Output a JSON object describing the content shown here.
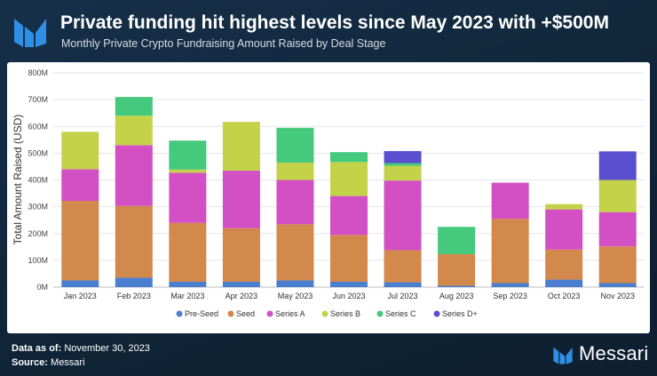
{
  "header": {
    "title": "Private funding hit highest levels since May 2023 with +$500M",
    "subtitle": "Monthly Private Crypto Fundraising Amount Raised by Deal Stage"
  },
  "colors": {
    "Pre-Seed": "#4a7fd0",
    "Seed": "#d3884c",
    "Series A": "#d24fc4",
    "Series B": "#c4d24a",
    "Series C": "#45c97c",
    "Series D+": "#5b4fd0",
    "brand": "#2f8ee6"
  },
  "chart_data": {
    "type": "bar",
    "stacked": true,
    "title": "Monthly Private Crypto Fundraising Amount Raised by Deal Stage",
    "xlabel": "",
    "ylabel": "Total Amount Raised (USD)",
    "ylim": [
      0,
      800
    ],
    "yunit": "M",
    "ytick_labels": [
      "0M",
      "100M",
      "200M",
      "300M",
      "400M",
      "500M",
      "600M",
      "700M",
      "800M"
    ],
    "grid": true,
    "legend_position": "bottom",
    "categories": [
      "Jan 2023",
      "Feb 2023",
      "Mar 2023",
      "Apr 2023",
      "May 2023",
      "Jun 2023",
      "Jul 2023",
      "Aug 2023",
      "Sep 2023",
      "Oct 2023",
      "Nov 2023"
    ],
    "series": [
      {
        "name": "Pre-Seed",
        "values": [
          25,
          35,
          20,
          20,
          25,
          20,
          18,
          5,
          15,
          28,
          15
        ]
      },
      {
        "name": "Seed",
        "values": [
          297,
          268,
          220,
          200,
          210,
          175,
          120,
          118,
          240,
          112,
          137
        ]
      },
      {
        "name": "Series A",
        "values": [
          118,
          227,
          187,
          215,
          165,
          145,
          260,
          0,
          135,
          150,
          128
        ]
      },
      {
        "name": "Series B",
        "values": [
          140,
          110,
          12,
          182,
          65,
          127,
          55,
          0,
          0,
          20,
          120
        ]
      },
      {
        "name": "Series C",
        "values": [
          0,
          70,
          108,
          0,
          130,
          37,
          10,
          102,
          0,
          0,
          0
        ]
      },
      {
        "name": "Series D+",
        "values": [
          0,
          0,
          0,
          0,
          0,
          0,
          45,
          0,
          0,
          0,
          107
        ]
      }
    ]
  },
  "footer": {
    "data_as_of_label": "Data as of:",
    "data_as_of_value": "November 30, 2023",
    "source_label": "Source:",
    "source_value": "Messari",
    "brand_name": "Messari"
  }
}
